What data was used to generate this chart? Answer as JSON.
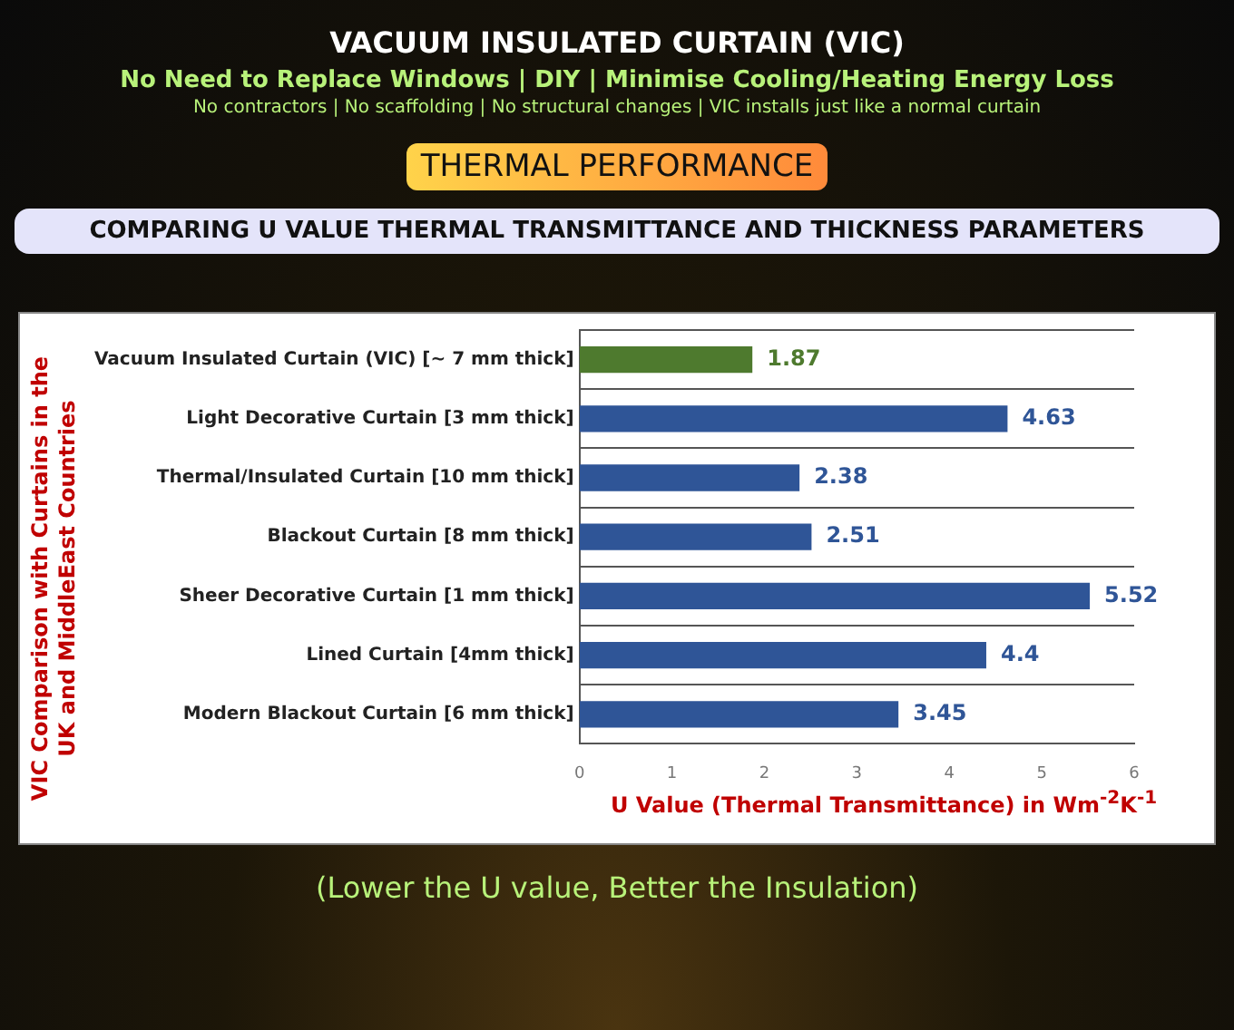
{
  "chart_data": {
    "type": "bar",
    "orientation": "horizontal",
    "title": "VACUUM INSULATED CURTAIN (VIC)",
    "subtitle": "No Need to Replace Windows | DIY | Minimise Cooling/Heating Energy Loss",
    "annotations": [
      "No contractors | No scaffolding | No structural changes | VIC installs just like a normal curtain",
      "THERMAL PERFORMANCE",
      "COMPARING U VALUE THERMAL TRANSMITTANCE AND THICKNESS PARAMETERS",
      "(Lower the U value, Better the Insulation)"
    ],
    "categories": [
      "Vacuum Insulated Curtain (VIC) [~ 7 mm thick]",
      "Light Decorative Curtain [3 mm thick]",
      "Thermal/Insulated Curtain [10 mm thick]",
      "Blackout Curtain [8 mm thick]",
      "Sheer Decorative Curtain [1 mm thick]",
      "Lined Curtain [4mm thick]",
      "Modern Blackout Curtain [6 mm thick]"
    ],
    "values": [
      1.87,
      4.63,
      2.38,
      2.51,
      5.52,
      4.4,
      3.45
    ],
    "colors": [
      "#4e7a2e",
      "#2f5597",
      "#2f5597",
      "#2f5597",
      "#2f5597",
      "#2f5597",
      "#2f5597"
    ],
    "xlim": [
      0,
      6
    ],
    "xticks": [
      0,
      1,
      2,
      3,
      4,
      5,
      6
    ],
    "xlabel": "U Value (Thermal Transmittance) in Wm$^{-2}$K$^{-1}$",
    "ylabel": "VIC Comparison with  Curtains in the UK and MiddleEast Countries",
    "data_labels": true,
    "grid": "y",
    "legend": false
  }
}
